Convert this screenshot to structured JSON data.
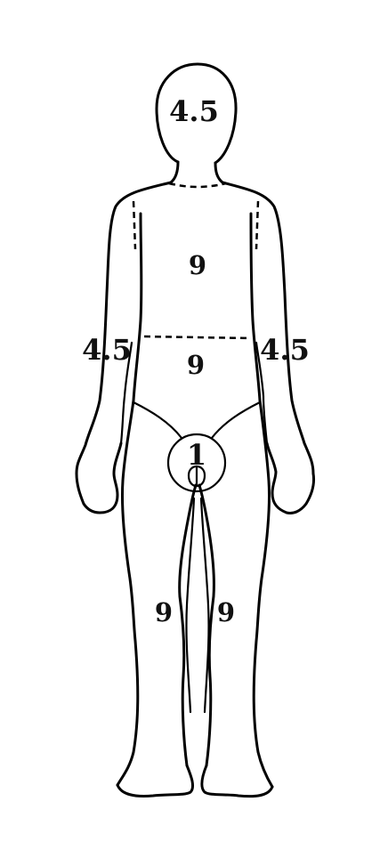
{
  "regions": {
    "head": "4.5",
    "chest": "9",
    "abdomen": "9",
    "left_arm": "4.5",
    "right_arm": "4.5",
    "genitals": "1",
    "left_leg": "9",
    "right_leg": "9"
  },
  "colors": {
    "line": "#000000",
    "background": "#ffffff"
  }
}
